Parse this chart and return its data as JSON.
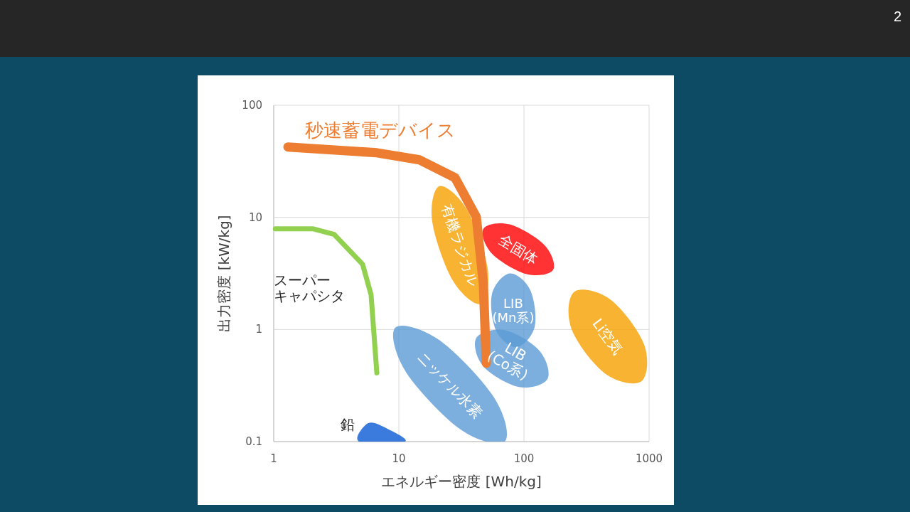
{
  "chart_data": {
    "type": "line",
    "xlabel": "エネルギー密度 [Wh/kg]",
    "ylabel": "出力密度 [kW/kg]",
    "log": "xy",
    "xlim": [
      1,
      1000
    ],
    "ylim": [
      0.1,
      100
    ],
    "xticks": [
      1,
      10,
      100,
      1000
    ],
    "yticks": [
      0.1,
      1,
      10,
      100
    ],
    "grid": true,
    "annotations": [
      "2"
    ],
    "series": [
      {
        "name": "秒速蓄電デバイス",
        "color": "#ed7d31",
        "x": [
          1.3,
          6.67,
          14.6,
          28.1,
          41.6,
          47.4,
          50
        ],
        "values": [
          42.4,
          37.7,
          32.6,
          22.6,
          10.1,
          2.54,
          0.5
        ]
      },
      {
        "name": "スーパーキャパシタ",
        "color": "#92d050",
        "x": [
          1.03,
          2.05,
          3.04,
          5.13,
          6.0,
          6.67
        ],
        "values": [
          7.92,
          7.92,
          7.05,
          3.82,
          2.04,
          0.41
        ]
      },
      {
        "type": "area",
        "name": "有機ラジカル",
        "color": "#f7a000",
        "x": [
          45.0,
          51.3,
          35.1,
          21.1,
          18.5,
          27.0
        ],
        "values": [
          1.69,
          3.5,
          11.7,
          19.0,
          9.16,
          2.73
        ]
      },
      {
        "type": "area",
        "name": "全固体",
        "color": "#ff0000",
        "x": [
          171,
          105,
          55.5,
          47.4,
          76.9,
          146
        ],
        "values": [
          3.4,
          3.12,
          4.75,
          7.92,
          8.65,
          5.66
        ]
      },
      {
        "type": "area",
        "name": "LIB (Mn系)",
        "color": "#5b9bd5",
        "x": [
          87.7,
          122,
          112,
          76.9,
          55.5,
          60.0
        ],
        "values": [
          0.695,
          1.06,
          2.26,
          3.16,
          2.07,
          0.971
        ]
      },
      {
        "type": "area",
        "name": "LIB (Co系)",
        "color": "#5b9bd5",
        "x": [
          154,
          91.2,
          47.4,
          41.6,
          70.2,
          133
        ],
        "values": [
          0.361,
          0.307,
          0.469,
          0.839,
          0.985,
          0.646
        ]
      },
      {
        "type": "area",
        "name": "Li空気",
        "color": "#f7a000",
        "x": [
          867,
          912,
          493,
          253,
          240,
          444
        ],
        "values": [
          0.345,
          0.736,
          1.84,
          2.17,
          1.01,
          0.405
        ]
      },
      {
        "type": "area",
        "name": "ニッケル水素",
        "color": "#5b9bd5",
        "x": [
          70.2,
          57.7,
          21.1,
          9.37,
          11.4,
          31.2
        ],
        "values": [
          0.1,
          0.247,
          0.804,
          1.04,
          0.417,
          0.128
        ]
      },
      {
        "type": "area",
        "name": "鉛",
        "color": "#0a5ad4",
        "x": [
          4.81,
          5.7,
          8.11,
          11.2
        ],
        "values": [
          0.1,
          0.146,
          0.13,
          0.1
        ]
      }
    ]
  }
}
